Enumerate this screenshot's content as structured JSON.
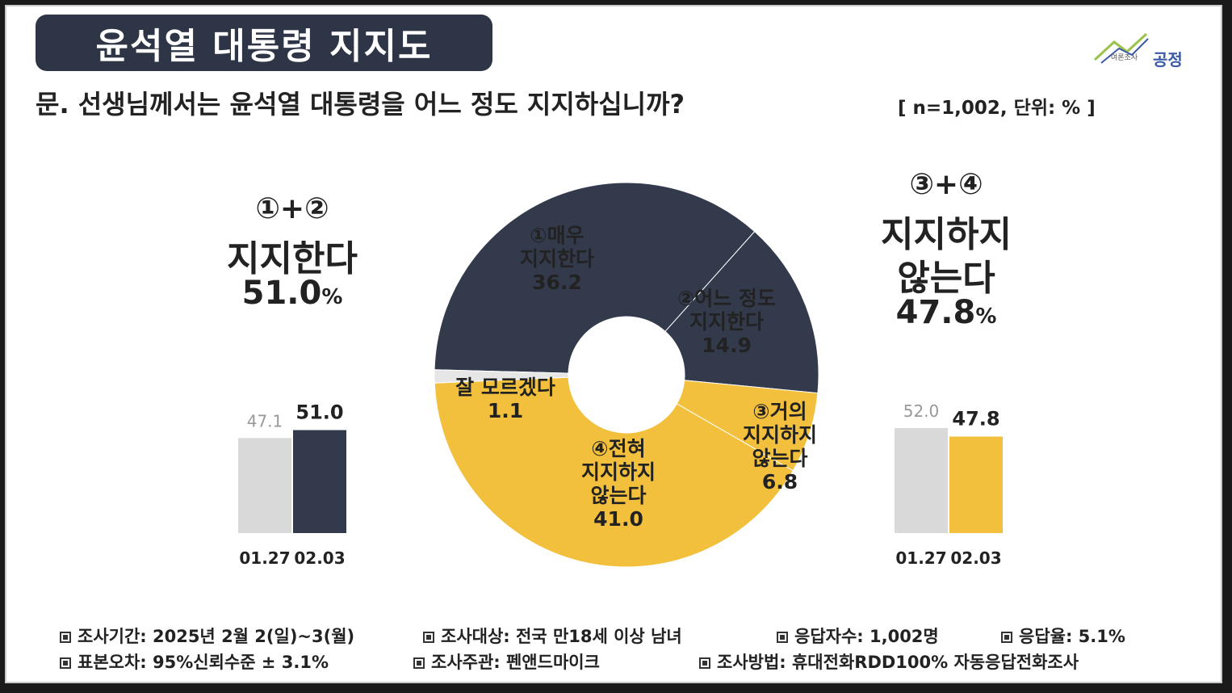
{
  "title": "윤석열 대통령 지지도",
  "question": "문. 선생님께서는 윤석열 대통령을 어느 정도 지지하십니까?",
  "sample_note": "[ n=1,002, 단위: % ]",
  "logo": {
    "text": "공정",
    "sub": "여론조사"
  },
  "support_total": {
    "label_top": "①+②",
    "label": "지지한다",
    "value": "51.0",
    "unit": "%"
  },
  "oppose_total": {
    "label_top": "③+④",
    "label_line1": "지지하지",
    "label_line2": "않는다",
    "value": "47.8",
    "unit": "%"
  },
  "colors": {
    "navy": "#323a4c",
    "yellow": "#f2c03c",
    "gray": "#d9d9d9",
    "light_gray": "#e6e6e6"
  },
  "chart_data": [
    {
      "type": "pie",
      "donut": true,
      "slices": [
        {
          "label_lines": [
            "①매우",
            "지지한다"
          ],
          "value": 36.2,
          "color": "#323a4c"
        },
        {
          "label_lines": [
            "②어느 정도",
            "지지한다"
          ],
          "value": 14.9,
          "color": "#323a4c"
        },
        {
          "label_lines": [
            "③거의",
            "지지하지",
            "않는다"
          ],
          "value": 6.8,
          "color": "#f2c03c"
        },
        {
          "label_lines": [
            "④전혀",
            "지지하지",
            "않는다"
          ],
          "value": 41.0,
          "color": "#f2c03c"
        },
        {
          "label_lines": [
            "잘 모르겠다"
          ],
          "value": 1.1,
          "color": "#e6e6e6"
        }
      ]
    },
    {
      "type": "bar",
      "categories": [
        "01.27",
        "02.03"
      ],
      "values": [
        47.1,
        51.0
      ],
      "value_labels": [
        "47.1",
        "51.0"
      ],
      "colors": [
        "#d9d9d9",
        "#323a4c"
      ]
    },
    {
      "type": "bar",
      "categories": [
        "01.27",
        "02.03"
      ],
      "values": [
        52.0,
        47.8
      ],
      "value_labels": [
        "52.0",
        "47.8"
      ],
      "colors": [
        "#d9d9d9",
        "#f2c03c"
      ]
    }
  ],
  "footer": [
    "조사기간: 2025년 2월 2(일)~3(월)",
    "조사대상: 전국 만18세 이상 남녀",
    "응답자수: 1,002명",
    "응답율: 5.1%",
    "표본오차: 95%신뢰수준 ± 3.1%",
    "조사주관: 펜앤드마이크",
    "조사방법: 휴대전화RDD100% 자동응답전화조사"
  ]
}
